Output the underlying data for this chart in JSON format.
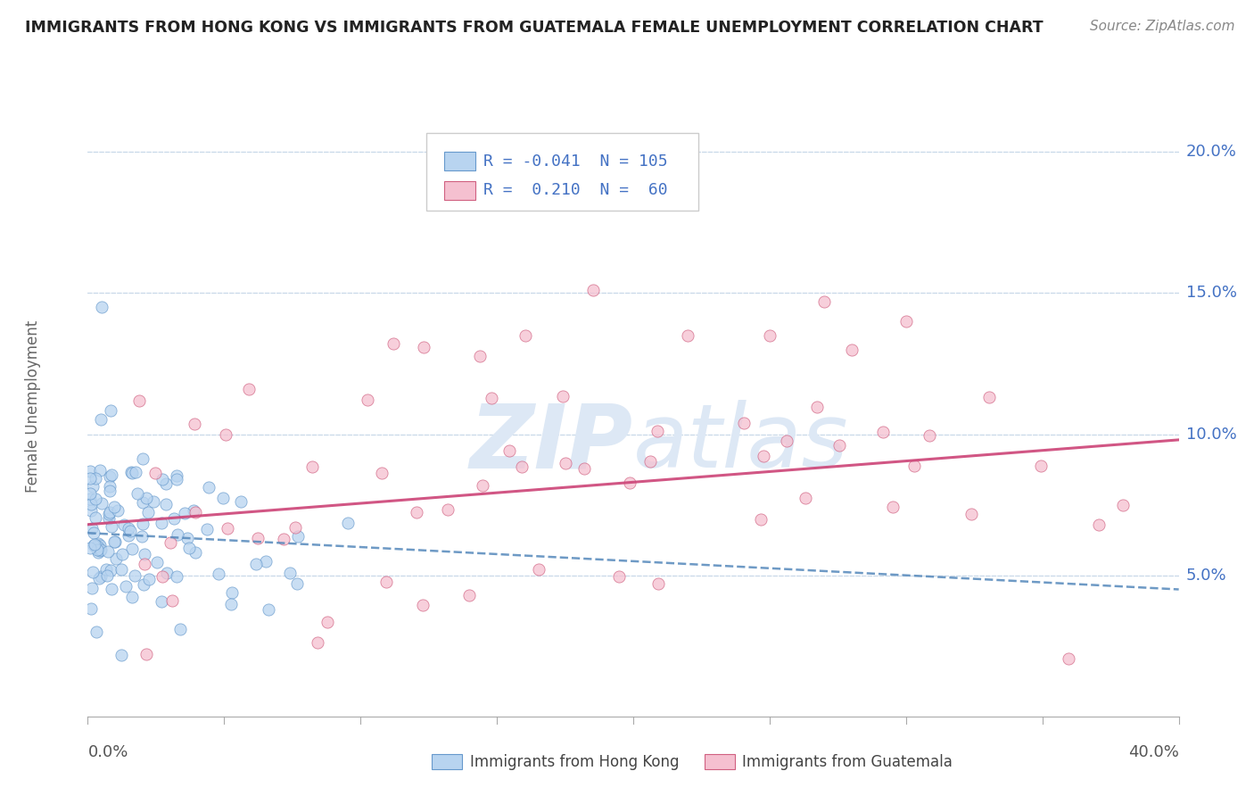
{
  "title": "IMMIGRANTS FROM HONG KONG VS IMMIGRANTS FROM GUATEMALA FEMALE UNEMPLOYMENT CORRELATION CHART",
  "source": "Source: ZipAtlas.com",
  "ylabel": "Female Unemployment",
  "xmin": 0.0,
  "xmax": 0.4,
  "ymin": 0.0,
  "ymax": 0.22,
  "yticks": [
    0.05,
    0.1,
    0.15,
    0.2
  ],
  "ytick_labels": [
    "5.0%",
    "10.0%",
    "15.0%",
    "20.0%"
  ],
  "grid_color": "#c8d8e8",
  "background_color": "#ffffff",
  "hk_color": "#b8d4f0",
  "hk_edge_color": "#6699cc",
  "gt_color": "#f5c0d0",
  "gt_edge_color": "#d06080",
  "hk_R": -0.041,
  "hk_N": 105,
  "gt_R": 0.21,
  "gt_N": 60,
  "watermark_zip": "ZIP",
  "watermark_atlas": "atlas",
  "watermark_color": "#dde8f5",
  "legend_label_hk": "Immigrants from Hong Kong",
  "legend_label_gt": "Immigrants from Guatemala",
  "stat_color_blue": "#4472c4",
  "hk_line_color": "#5588bb",
  "gt_line_color": "#cc4477",
  "hk_line_start_y": 0.065,
  "hk_line_end_y": 0.045,
  "gt_line_start_y": 0.068,
  "gt_line_end_y": 0.098
}
